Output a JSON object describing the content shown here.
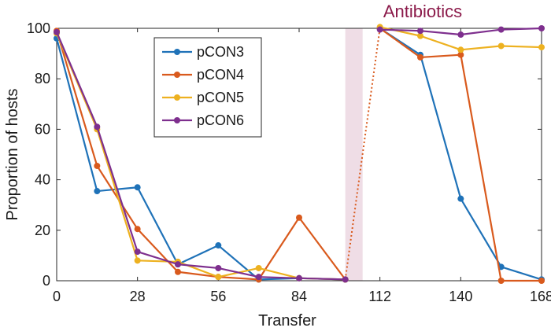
{
  "chart_data": {
    "type": "line",
    "title": "",
    "xlabel": "Transfer",
    "ylabel": "Proportion of hosts",
    "xlim": [
      0,
      168
    ],
    "ylim": [
      0,
      100
    ],
    "xticks": [
      0,
      28,
      56,
      84,
      112,
      140,
      168
    ],
    "yticks": [
      0,
      20,
      40,
      60,
      80,
      100
    ],
    "legend_position": "top-center",
    "annotation": {
      "text": "Antibiotics",
      "color": "#8b1a4a",
      "shade_color": "#efdde6",
      "span_x": [
        100,
        106
      ]
    },
    "series": [
      {
        "name": "pCON3",
        "color": "#1f72b8",
        "x": [
          0,
          14,
          28,
          42,
          56,
          70,
          84,
          100
        ],
        "y": [
          96,
          35.5,
          37,
          6.5,
          14,
          0.5,
          1,
          0.5
        ],
        "x2": [
          112,
          126,
          140,
          154,
          168
        ],
        "y2": [
          100,
          89.5,
          32.5,
          5.5,
          0.5
        ]
      },
      {
        "name": "pCON4",
        "color": "#d95a1d",
        "x": [
          0,
          14,
          28,
          42,
          56,
          70,
          84,
          100
        ],
        "y": [
          99,
          45.5,
          20.5,
          3.5,
          1.5,
          0.5,
          25,
          0.5
        ],
        "x2": [
          112,
          126,
          140,
          154,
          168
        ],
        "y2": [
          100,
          88.5,
          89.5,
          0,
          0
        ]
      },
      {
        "name": "pCON5",
        "color": "#edb120",
        "x": [
          0,
          14,
          28,
          42,
          56,
          70,
          84,
          100
        ],
        "y": [
          98,
          60,
          8,
          7.5,
          1.5,
          5,
          1,
          0.5
        ],
        "x2": [
          112,
          126,
          140,
          154,
          168
        ],
        "y2": [
          100.5,
          97,
          91.5,
          93,
          92.5
        ]
      },
      {
        "name": "pCON6",
        "color": "#7e2f8e",
        "x": [
          0,
          14,
          28,
          42,
          56,
          70,
          84,
          100
        ],
        "y": [
          98.5,
          61,
          11.5,
          6.5,
          5,
          1.5,
          1,
          0.5
        ],
        "x2": [
          112,
          126,
          140,
          154,
          168
        ],
        "y2": [
          99.5,
          99,
          97.5,
          99.5,
          100
        ]
      }
    ]
  }
}
